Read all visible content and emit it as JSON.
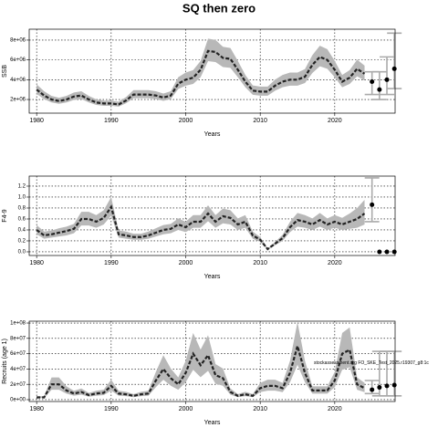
{
  "title": "SQ then zero",
  "chart_data": [
    {
      "type": "line",
      "xlabel": "Years",
      "ylabel": "SSB",
      "xlim": [
        1979,
        2028.1
      ],
      "xticks": [
        1980,
        1990,
        2000,
        2010,
        2020
      ],
      "ylim": [
        620000.0,
        9100000.0
      ],
      "yticks": [
        {
          "value": 2000000.0,
          "label": "2e+06"
        },
        {
          "value": 4000000.0,
          "label": "4e+06"
        },
        {
          "value": 6000000.0,
          "label": "6e+06"
        },
        {
          "value": 8000000.0,
          "label": "8e+06"
        }
      ],
      "grid": true,
      "color": "#222222",
      "band_color": "#b8b8b8",
      "x": [
        1980,
        1981,
        1982,
        1983,
        1984,
        1985,
        1986,
        1987,
        1988,
        1989,
        1990,
        1991,
        1992,
        1993,
        1994,
        1995,
        1996,
        1997,
        1998,
        1999,
        2000,
        2001,
        2002,
        2003,
        2004,
        2005,
        2006,
        2007,
        2008,
        2009,
        2010,
        2011,
        2012,
        2013,
        2014,
        2015,
        2016,
        2017,
        2018,
        2019,
        2020,
        2021,
        2022,
        2023,
        2024
      ],
      "values": [
        3000000.0,
        2400000.0,
        2000000.0,
        1850000.0,
        2000000.0,
        2300000.0,
        2400000.0,
        2000000.0,
        1700000.0,
        1600000.0,
        1600000.0,
        1500000.0,
        1900000.0,
        2500000.0,
        2500000.0,
        2500000.0,
        2400000.0,
        2200000.0,
        2400000.0,
        3600000.0,
        4000000.0,
        4200000.0,
        5000000.0,
        6900000.0,
        6800000.0,
        6200000.0,
        6100000.0,
        5000000.0,
        3800000.0,
        2900000.0,
        2800000.0,
        2800000.0,
        3400000.0,
        3800000.0,
        4000000.0,
        4000000.0,
        4300000.0,
        5500000.0,
        6300000.0,
        6000000.0,
        5000000.0,
        3800000.0,
        4200000.0,
        5100000.0,
        4600000.0
      ],
      "lower": [
        2550000.0,
        2040000.0,
        1700000.0,
        1570000.0,
        1700000.0,
        1960000.0,
        2040000.0,
        1700000.0,
        1450000.0,
        1360000.0,
        1360000.0,
        1280000.0,
        1620000.0,
        2130000.0,
        2130000.0,
        2130000.0,
        2040000.0,
        1870000.0,
        2040000.0,
        3060000.0,
        3400000.0,
        3570000.0,
        4250000.0,
        5870000.0,
        5780000.0,
        5270000.0,
        5190000.0,
        4250000.0,
        3230000.0,
        2470000.0,
        2380000.0,
        2380000.0,
        2890000.0,
        3230000.0,
        3400000.0,
        3400000.0,
        3660000.0,
        4680000.0,
        5360000.0,
        5100000.0,
        4250000.0,
        3230000.0,
        3570000.0,
        4340000.0,
        3910000.0
      ],
      "upper": [
        3540000.0,
        2830000.0,
        2360000.0,
        2180000.0,
        2360000.0,
        2710000.0,
        2830000.0,
        2360000.0,
        2010000.0,
        1890000.0,
        1890000.0,
        1770000.0,
        2240000.0,
        2950000.0,
        2950000.0,
        2950000.0,
        2830000.0,
        2600000.0,
        2830000.0,
        4250000.0,
        4720000.0,
        4960000.0,
        5900000.0,
        8140000.0,
        8020000.0,
        7320000.0,
        7200000.0,
        5900000.0,
        4480000.0,
        3420000.0,
        3300000.0,
        3300000.0,
        4010000.0,
        4480000.0,
        4720000.0,
        4720000.0,
        5070000.0,
        6490000.0,
        7430000.0,
        7080000.0,
        5900000.0,
        4480000.0,
        4960000.0,
        6020000.0,
        5430000.0
      ],
      "points": {
        "x": [
          2025,
          2026,
          2027,
          2028
        ],
        "values": [
          3800000.0,
          3000000.0,
          4000000.0,
          5100000.0
        ],
        "lower": [
          2500000.0,
          2000000.0,
          2500000.0,
          3100000.0
        ],
        "upper": [
          4800000.0,
          4800000.0,
          6300000.0,
          8700000.0
        ]
      }
    },
    {
      "type": "line",
      "xlabel": "Years",
      "ylabel": "F4-9",
      "xlim": [
        1979,
        2028.1
      ],
      "xticks": [
        1980,
        1990,
        2000,
        2010,
        2020
      ],
      "ylim": [
        -0.067,
        1.383
      ],
      "yticks": [
        {
          "value": 0,
          "label": "0.0"
        },
        0.2,
        0.4,
        0.6,
        0.8,
        {
          "value": 1,
          "label": "1.0"
        },
        1.2
      ],
      "grid": true,
      "color": "#222222",
      "band_color": "#b8b8b8",
      "x": [
        1980,
        1981,
        1982,
        1983,
        1984,
        1985,
        1986,
        1987,
        1988,
        1989,
        1990,
        1991,
        1992,
        1993,
        1994,
        1995,
        1996,
        1997,
        1998,
        1999,
        2000,
        2001,
        2002,
        2003,
        2004,
        2005,
        2006,
        2007,
        2008,
        2009,
        2010,
        2011,
        2012,
        2013,
        2014,
        2015,
        2016,
        2017,
        2018,
        2019,
        2020,
        2021,
        2022,
        2023,
        2024
      ],
      "values": [
        0.4,
        0.3,
        0.32,
        0.35,
        0.38,
        0.42,
        0.6,
        0.6,
        0.55,
        0.62,
        0.82,
        0.32,
        0.3,
        0.27,
        0.27,
        0.3,
        0.35,
        0.4,
        0.42,
        0.5,
        0.45,
        0.55,
        0.55,
        0.7,
        0.55,
        0.65,
        0.62,
        0.5,
        0.55,
        0.3,
        0.22,
        0.05,
        0.15,
        0.25,
        0.45,
        0.58,
        0.55,
        0.5,
        0.58,
        0.5,
        0.55,
        0.5,
        0.55,
        0.6,
        0.7
      ],
      "lower": [
        0.32,
        0.24,
        0.26,
        0.28,
        0.3,
        0.34,
        0.48,
        0.48,
        0.44,
        0.5,
        0.66,
        0.26,
        0.24,
        0.22,
        0.22,
        0.24,
        0.28,
        0.32,
        0.34,
        0.4,
        0.36,
        0.44,
        0.44,
        0.56,
        0.44,
        0.52,
        0.5,
        0.4,
        0.44,
        0.24,
        0.18,
        0.04,
        0.12,
        0.2,
        0.36,
        0.46,
        0.44,
        0.4,
        0.46,
        0.4,
        0.44,
        0.4,
        0.42,
        0.44,
        0.5
      ],
      "upper": [
        0.49,
        0.37,
        0.39,
        0.43,
        0.46,
        0.51,
        0.73,
        0.73,
        0.67,
        0.76,
        1.0,
        0.39,
        0.37,
        0.33,
        0.33,
        0.37,
        0.43,
        0.49,
        0.51,
        0.61,
        0.55,
        0.67,
        0.67,
        0.85,
        0.67,
        0.79,
        0.76,
        0.61,
        0.67,
        0.37,
        0.27,
        0.06,
        0.18,
        0.31,
        0.55,
        0.71,
        0.67,
        0.61,
        0.71,
        0.61,
        0.67,
        0.62,
        0.7,
        0.8,
        0.95
      ],
      "points": {
        "x": [
          2025,
          2026,
          2027,
          2028
        ],
        "values": [
          0.86,
          0,
          0,
          0
        ],
        "lower": [
          0.55,
          null,
          null,
          null
        ],
        "upper": [
          1.35,
          null,
          null,
          null
        ]
      }
    },
    {
      "type": "line",
      "xlabel": "Years",
      "ylabel": "Recruits (age 1)",
      "annotation": "stockassessment.org FO_SKE_Test_2025.r19307_g8:1c",
      "xlim": [
        1979,
        2028.1
      ],
      "xticks": [
        1980,
        1990,
        2000,
        2010,
        2020
      ],
      "ylim": [
        -2400000.0,
        102400000.0
      ],
      "yticks": [
        {
          "value": 0,
          "label": "0e+00"
        },
        {
          "value": 20000000.0,
          "label": "2e+07"
        },
        {
          "value": 40000000.0,
          "label": "4e+07"
        },
        {
          "value": 60000000.0,
          "label": "6e+07"
        },
        {
          "value": 80000000.0,
          "label": "8e+07"
        },
        {
          "value": 100000000.0,
          "label": "1e+08"
        }
      ],
      "grid": true,
      "color": "#222222",
      "band_color": "#b8b8b8",
      "x": [
        1980,
        1981,
        1982,
        1983,
        1984,
        1985,
        1986,
        1987,
        1988,
        1989,
        1990,
        1991,
        1992,
        1993,
        1994,
        1995,
        1996,
        1997,
        1998,
        1999,
        2000,
        2001,
        2002,
        2003,
        2004,
        2005,
        2006,
        2007,
        2008,
        2009,
        2010,
        2011,
        2012,
        2013,
        2014,
        2015,
        2016,
        2017,
        2018,
        2019,
        2020,
        2021,
        2022,
        2023,
        2024
      ],
      "values": [
        3000000.0,
        3000000.0,
        20000000.0,
        20000000.0,
        12000000.0,
        8000000.0,
        10000000.0,
        6000000.0,
        8000000.0,
        9000000.0,
        18000000.0,
        8000000.0,
        7000000.0,
        5000000.0,
        7000000.0,
        8000000.0,
        25000000.0,
        40000000.0,
        28000000.0,
        20000000.0,
        35000000.0,
        60000000.0,
        45000000.0,
        58000000.0,
        32000000.0,
        28000000.0,
        10000000.0,
        5000000.0,
        7000000.0,
        5000000.0,
        15000000.0,
        18000000.0,
        18000000.0,
        15000000.0,
        35000000.0,
        70000000.0,
        35000000.0,
        12000000.0,
        12000000.0,
        12000000.0,
        25000000.0,
        60000000.0,
        65000000.0,
        20000000.0,
        15000000.0
      ],
      "lower": [
        2000000.0,
        2000000.0,
        13000000.0,
        13000000.0,
        7800000.0,
        5200000.0,
        6500000.0,
        3900000.0,
        5200000.0,
        5900000.0,
        11700000.0,
        5200000.0,
        4600000.0,
        3300000.0,
        4600000.0,
        5200000.0,
        16300000.0,
        26000000.0,
        18200000.0,
        13000000.0,
        22800000.0,
        39000000.0,
        29300000.0,
        37700000.0,
        20800000.0,
        18200000.0,
        6500000.0,
        3300000.0,
        4600000.0,
        3300000.0,
        9800000.0,
        11700000.0,
        11700000.0,
        9800000.0,
        22800000.0,
        45500000.0,
        22800000.0,
        7800000.0,
        7800000.0,
        7800000.0,
        16300000.0,
        39000000.0,
        42300000.0,
        13000000.0,
        9800000.0
      ],
      "upper": [
        4400000.0,
        4400000.0,
        29000000.0,
        29000000.0,
        17400000.0,
        11600000.0,
        14500000.0,
        8700000.0,
        11600000.0,
        13100000.0,
        26100000.0,
        11600000.0,
        10200000.0,
        7300000.0,
        10200000.0,
        11600000.0,
        36300000.0,
        58000000.0,
        40600000.0,
        29000000.0,
        50800000.0,
        87000000.0,
        65300000.0,
        84100000.0,
        46400000.0,
        40600000.0,
        14500000.0,
        7300000.0,
        10200000.0,
        7300000.0,
        21800000.0,
        26100000.0,
        26100000.0,
        21800000.0,
        50800000.0,
        101500000.0,
        50800000.0,
        17400000.0,
        17400000.0,
        17400000.0,
        36300000.0,
        87000000.0,
        94300000.0,
        29000000.0,
        21800000.0
      ],
      "points": {
        "x": [
          2025,
          2026,
          2027,
          2028
        ],
        "values": [
          13000000.0,
          16000000.0,
          18000000.0,
          19000000.0
        ],
        "lower": [
          8000000.0,
          5000000.0,
          5000000.0,
          5000000.0
        ],
        "upper": [
          25000000.0,
          63000000.0,
          63000000.0,
          63000000.0
        ]
      }
    }
  ]
}
